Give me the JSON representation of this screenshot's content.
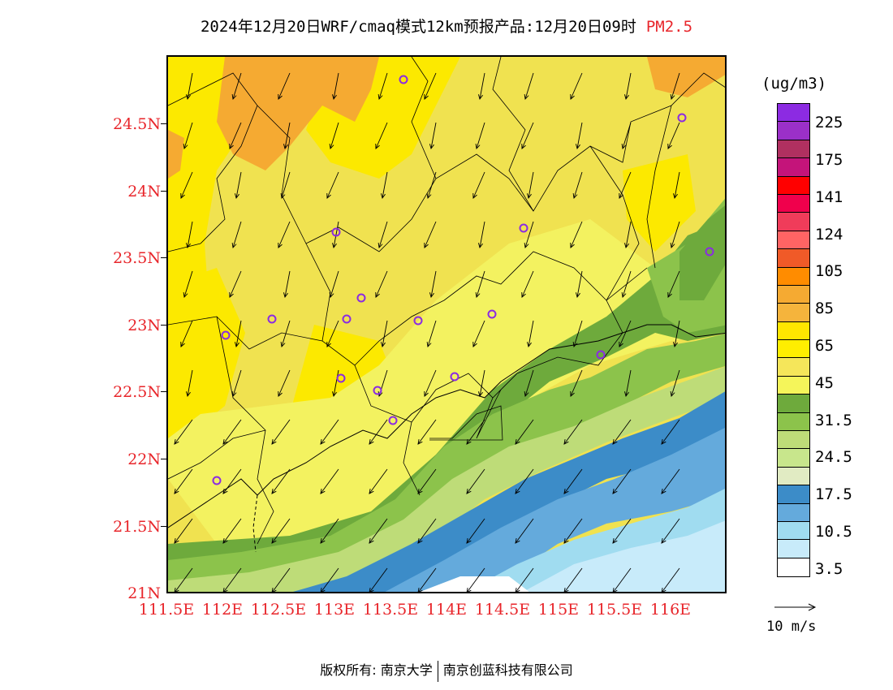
{
  "title": {
    "main": "2024年12月20日WRF/cmaq模式12km预报产品:12月20日09时",
    "variable": "PM2.5"
  },
  "map": {
    "lat_labels": [
      "24.5N",
      "24N",
      "23.5N",
      "23N",
      "22.5N",
      "22N",
      "21.5N",
      "21N"
    ],
    "lon_labels": [
      "111.5E",
      "112E",
      "112.5E",
      "113E",
      "113.5E",
      "114E",
      "114.5E",
      "115E",
      "115.5E",
      "116E"
    ],
    "lat_range": [
      21,
      25
    ],
    "lon_range": [
      111.5,
      116.5
    ]
  },
  "colorbar": {
    "unit": "(ug/m3)",
    "labels": [
      "225",
      "175",
      "141",
      "124",
      "105",
      "85",
      "65",
      "45",
      "31.5",
      "24.5",
      "17.5",
      "10.5",
      "3.5"
    ],
    "colors": [
      "#8c2be2",
      "#9b30c8",
      "#b03060",
      "#c4147a",
      "#ff0000",
      "#f0004c",
      "#f03c5a",
      "#ff6464",
      "#f05a28",
      "#ff8c00",
      "#f5aa32",
      "#f5b43c",
      "#ffe600",
      "#ffee00",
      "#f5e65a",
      "#f5f55a",
      "#6eaa3c",
      "#8cc34b",
      "#bedc78",
      "#c8e68c",
      "#e1ebc3",
      "#3c8cc8",
      "#64aadc",
      "#a0dcf0",
      "#c8ebfa",
      "#ffffff"
    ]
  },
  "wind_reference": {
    "label": "10 m/s"
  },
  "stations_color": "#8b2be2",
  "copyright": {
    "left": "版权所有: 南京大学",
    "right": "南京创蓝科技有限公司"
  }
}
